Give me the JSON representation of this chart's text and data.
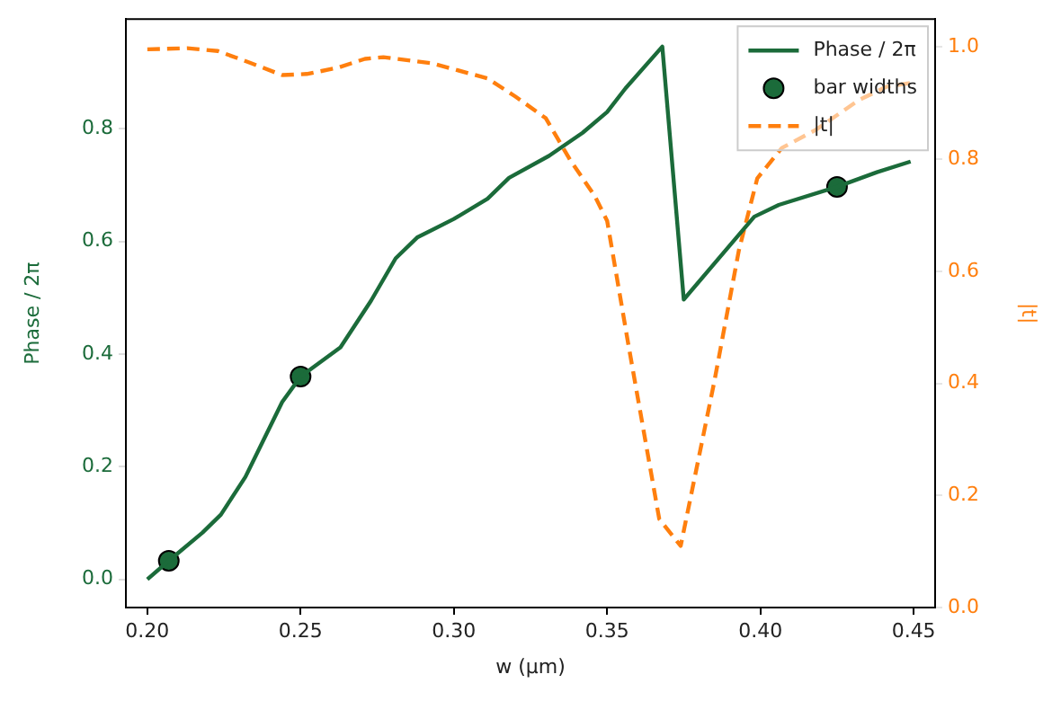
{
  "chart_data": {
    "type": "line",
    "xlabel": "w (µm)",
    "ylabel": "Phase / 2π",
    "y2label": "|t|",
    "xlim": [
      0.193,
      0.457
    ],
    "xticks": [
      {
        "value": 0.2,
        "label": "0.20"
      },
      {
        "value": 0.25,
        "label": "0.25"
      },
      {
        "value": 0.3,
        "label": "0.30"
      },
      {
        "value": 0.35,
        "label": "0.35"
      },
      {
        "value": 0.4,
        "label": "0.40"
      },
      {
        "value": 0.45,
        "label": "0.45"
      }
    ],
    "ylim": [
      -0.05,
      0.995
    ],
    "yticks": [
      {
        "value": 0,
        "label": "0.0"
      },
      {
        "value": 0.2,
        "label": "0.2"
      },
      {
        "value": 0.4,
        "label": "0.4"
      },
      {
        "value": 0.6,
        "label": "0.6"
      },
      {
        "value": 0.8,
        "label": "0.8"
      }
    ],
    "y2lim": [
      0,
      1.05
    ],
    "y2ticks": [
      {
        "value": 0,
        "label": "0.0"
      },
      {
        "value": 0.2,
        "label": "0.2"
      },
      {
        "value": 0.4,
        "label": "0.4"
      },
      {
        "value": 0.6,
        "label": "0.6"
      },
      {
        "value": 0.8,
        "label": "0.8"
      },
      {
        "value": 1,
        "label": "1.0"
      }
    ],
    "legend": "top right",
    "grid": false,
    "series": [
      {
        "name": "Phase / 2π",
        "type": "line",
        "line_style": "solid",
        "marker": "none",
        "color": "#1b6b3a",
        "x": [
          0.2,
          0.207,
          0.218,
          0.224,
          0.232,
          0.244,
          0.25,
          0.263,
          0.273,
          0.281,
          0.288,
          0.3,
          0.311,
          0.318,
          0.331,
          0.342,
          0.35,
          0.356,
          0.368,
          0.375,
          0.393,
          0.398,
          0.406,
          0.425,
          0.438,
          0.449
        ],
        "values": [
          0.0,
          0.033,
          0.083,
          0.115,
          0.182,
          0.315,
          0.36,
          0.412,
          0.495,
          0.57,
          0.607,
          0.64,
          0.676,
          0.713,
          0.752,
          0.793,
          0.83,
          0.872,
          0.946,
          0.497,
          0.612,
          0.644,
          0.665,
          0.697,
          0.723,
          0.742
        ]
      },
      {
        "name": "bar widths",
        "type": "scatter",
        "marker": "circle",
        "color": "#1b6b3a",
        "x": [
          0.207,
          0.25,
          0.425
        ],
        "values": [
          0.033,
          0.36,
          0.697
        ]
      },
      {
        "name": "|t|",
        "type": "line",
        "axis": "y2",
        "line_style": "dashed",
        "marker": "none",
        "color": "#ff7f0e",
        "x": [
          0.2,
          0.213,
          0.223,
          0.234,
          0.244,
          0.252,
          0.262,
          0.271,
          0.277,
          0.293,
          0.311,
          0.32,
          0.33,
          0.338,
          0.346,
          0.35,
          0.357,
          0.367,
          0.374,
          0.385,
          0.393,
          0.399,
          0.407,
          0.418,
          0.432,
          0.441,
          0.449
        ],
        "values": [
          0.996,
          0.998,
          0.993,
          0.971,
          0.95,
          0.952,
          0.963,
          0.979,
          0.982,
          0.971,
          0.944,
          0.912,
          0.873,
          0.798,
          0.734,
          0.69,
          0.467,
          0.158,
          0.11,
          0.404,
          0.638,
          0.766,
          0.82,
          0.852,
          0.905,
          0.929,
          0.936
        ]
      }
    ]
  }
}
